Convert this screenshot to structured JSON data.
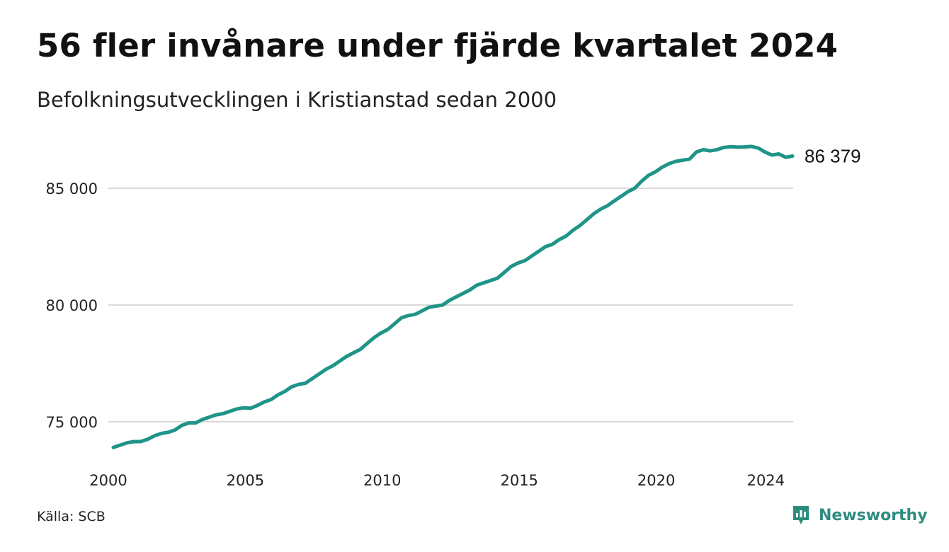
{
  "header": {
    "title": "56 fler invånare under fjärde kvartalet 2024",
    "subtitle": "Befolkningsutvecklingen i Kristianstad sedan 2000"
  },
  "footer": {
    "source": "Källa: SCB",
    "brand": "Newsworthy"
  },
  "colors": {
    "line": "#1f9488",
    "grid": "#d9d9d9",
    "brand": "#2e8c7f"
  },
  "chart_data": {
    "type": "line",
    "xlabel": "",
    "ylabel": "",
    "xlim": [
      2000,
      2025
    ],
    "ylim": [
      73800,
      87000
    ],
    "grid": true,
    "x_ticks": [
      {
        "value": 2000,
        "label": "2000"
      },
      {
        "value": 2005,
        "label": "2005"
      },
      {
        "value": 2010,
        "label": "2010"
      },
      {
        "value": 2015,
        "label": "2015"
      },
      {
        "value": 2020,
        "label": "2020"
      },
      {
        "value": 2024,
        "label": "2024"
      }
    ],
    "y_ticks": [
      {
        "value": 75000,
        "label": "75 000"
      },
      {
        "value": 80000,
        "label": "80 000"
      },
      {
        "value": 85000,
        "label": "85 000"
      }
    ],
    "end_label": "86 379",
    "series": [
      {
        "quarters": [
          "2000 K1",
          "2000 K2",
          "2000 K3",
          "2000 K4",
          "2001 K1",
          "2001 K2",
          "2001 K3",
          "2001 K4",
          "2002 K1",
          "2002 K2",
          "2002 K3",
          "2002 K4",
          "2003 K1",
          "2003 K2",
          "2003 K3",
          "2003 K4",
          "2004 K1",
          "2004 K2",
          "2004 K3",
          "2004 K4",
          "2005 K1",
          "2005 K2",
          "2005 K3",
          "2005 K4",
          "2006 K1",
          "2006 K2",
          "2006 K3",
          "2006 K4",
          "2007 K1",
          "2007 K2",
          "2007 K3",
          "2007 K4",
          "2008 K1",
          "2008 K2",
          "2008 K3",
          "2008 K4",
          "2009 K1",
          "2009 K2",
          "2009 K3",
          "2009 K4",
          "2010 K1",
          "2010 K2",
          "2010 K3",
          "2010 K4",
          "2011 K1",
          "2011 K2",
          "2011 K3",
          "2011 K4",
          "2012 K1",
          "2012 K2",
          "2012 K3",
          "2012 K4",
          "2013 K1",
          "2013 K2",
          "2013 K3",
          "2013 K4",
          "2014 K1",
          "2014 K2",
          "2014 K3",
          "2014 K4",
          "2015 K1",
          "2015 K2",
          "2015 K3",
          "2015 K4",
          "2016 K1",
          "2016 K2",
          "2016 K3",
          "2016 K4",
          "2017 K1",
          "2017 K2",
          "2017 K3",
          "2017 K4",
          "2018 K1",
          "2018 K2",
          "2018 K3",
          "2018 K4",
          "2019 K1",
          "2019 K2",
          "2019 K3",
          "2019 K4",
          "2020 K1",
          "2020 K2",
          "2020 K3",
          "2020 K4",
          "2021 K1",
          "2021 K2",
          "2021 K3",
          "2021 K4",
          "2022 K1",
          "2022 K2",
          "2022 K3",
          "2022 K4",
          "2023 K1",
          "2023 K2",
          "2023 K3",
          "2023 K4",
          "2024 K1",
          "2024 K2",
          "2024 K3",
          "2024 K4"
        ],
        "values": [
          73900,
          74000,
          74100,
          74150,
          74150,
          74250,
          74400,
          74500,
          74550,
          74650,
          74850,
          74950,
          74950,
          75100,
          75200,
          75300,
          75350,
          75450,
          75550,
          75600,
          75580,
          75700,
          75850,
          75950,
          76150,
          76300,
          76500,
          76600,
          76650,
          76850,
          77050,
          77250,
          77400,
          77600,
          77800,
          77950,
          78100,
          78350,
          78600,
          78800,
          78950,
          79200,
          79450,
          79550,
          79600,
          79750,
          79900,
          79950,
          80000,
          80200,
          80350,
          80500,
          80650,
          80850,
          80950,
          81050,
          81150,
          81400,
          81650,
          81800,
          81900,
          82100,
          82300,
          82500,
          82600,
          82800,
          82950,
          83200,
          83400,
          83650,
          83900,
          84100,
          84250,
          84450,
          84650,
          84850,
          85000,
          85300,
          85550,
          85700,
          85900,
          86050,
          86150,
          86200,
          86250,
          86550,
          86650,
          86600,
          86650,
          86750,
          86780,
          86760,
          86770,
          86790,
          86720,
          86550,
          86420,
          86470,
          86323,
          86379
        ]
      }
    ]
  }
}
